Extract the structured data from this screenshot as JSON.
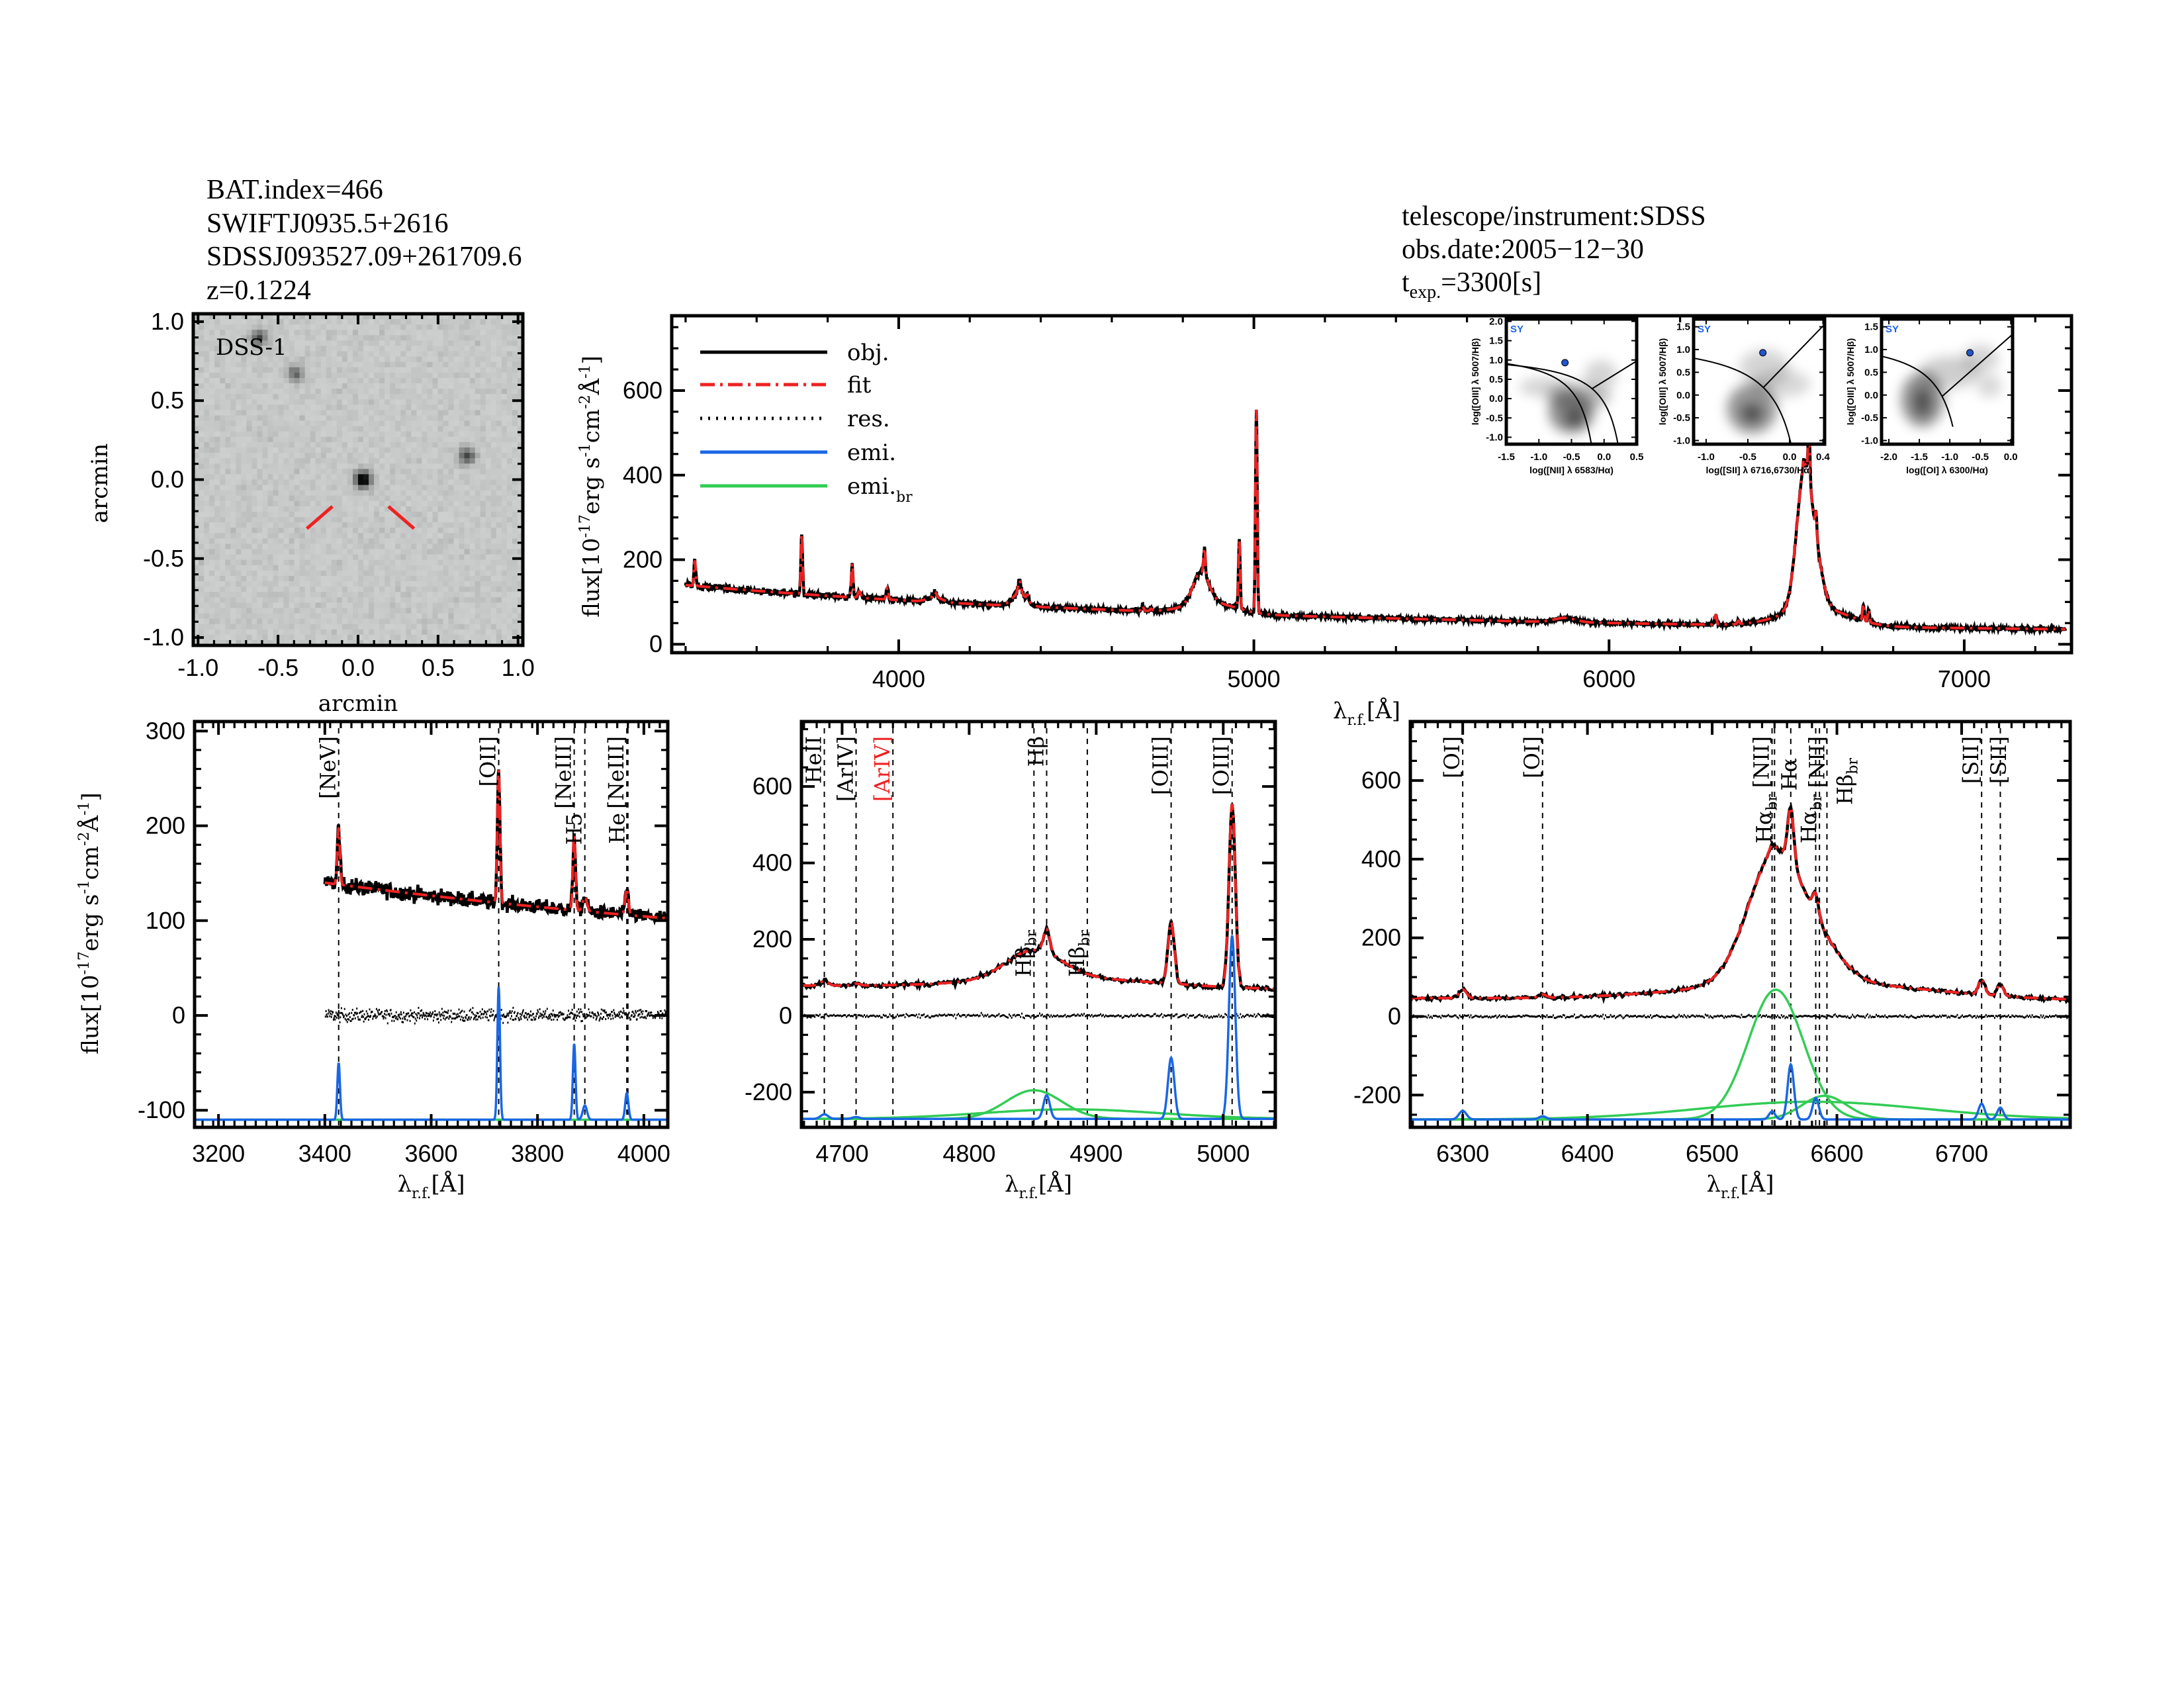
{
  "header_left": {
    "bat_index": "BAT.index=466",
    "swift_name": "SWIFTJ0935.5+2616",
    "sdss_name": "SDSSJ093527.09+261709.6",
    "redshift": "z=0.1224"
  },
  "header_right": {
    "instrument": "telescope/instrument:SDSS",
    "obs_date": "obs.date:2005−12−30",
    "texp_base": "t",
    "texp_sub": "exp.",
    "texp_value": "=3300[s]"
  },
  "colors": {
    "obj": "#000000",
    "fit": "#ee2222",
    "res": "#000000",
    "emi": "#1a66e6",
    "emi_br": "#33cc55",
    "bpt_point": "#2255cc",
    "sy_label": "#1a66e6"
  },
  "chart_data": {
    "dss": {
      "type": "heatmap",
      "label": "DSS-1",
      "xlabel": "arcmin",
      "ylabel": "arcmin",
      "xlim": [
        -1.03,
        1.03
      ],
      "ylim": [
        -1.05,
        1.05
      ],
      "xtick_labels": [
        "-1.0",
        "-0.5",
        "0.0",
        "0.5",
        "1.0"
      ],
      "ytick_labels": [
        "-1.0",
        "-0.5",
        "0.0",
        "0.5",
        "1.0"
      ],
      "sources": [
        {
          "x": 0.03,
          "y": 0.0,
          "amp": 1.0
        },
        {
          "x": -0.62,
          "y": 0.9,
          "amp": 0.55
        },
        {
          "x": -0.39,
          "y": 0.67,
          "amp": 0.45
        },
        {
          "x": 0.68,
          "y": 0.15,
          "amp": 0.6
        }
      ]
    },
    "main": {
      "type": "line",
      "xlim": [
        3361,
        7302
      ],
      "ylim": [
        -20,
        777
      ],
      "xtick_labels": [
        "4000",
        "5000",
        "6000",
        "7000"
      ],
      "ytick_labels": [
        "0",
        "200",
        "400",
        "600"
      ],
      "xlabel": {
        "base": "λ",
        "sub": "r.f.",
        "rest": "[Å]"
      },
      "ylabel": [
        {
          "t": "flux[10",
          "sup": false
        },
        {
          "t": "-17",
          "sup": true
        },
        {
          "t": "erg s",
          "sup": false
        },
        {
          "t": "-1",
          "sup": true
        },
        {
          "t": "cm",
          "sup": false
        },
        {
          "t": "-2",
          "sup": true
        },
        {
          "t": "Å",
          "sup": false
        },
        {
          "t": "-1",
          "sup": true
        },
        {
          "t": "]",
          "sup": false
        }
      ],
      "legend": [
        {
          "key": "obj",
          "text": "obj.",
          "sub": ""
        },
        {
          "key": "fit",
          "text": "fit",
          "sub": ""
        },
        {
          "key": "res",
          "text": "res.",
          "sub": ""
        },
        {
          "key": "emi",
          "text": "emi.",
          "sub": ""
        },
        {
          "key": "emi_br",
          "text": "emi.",
          "sub": "br"
        }
      ]
    },
    "zoom_panels": [
      {
        "id": "p1",
        "xlim": [
          3155,
          4045
        ],
        "ylim": [
          -118,
          310
        ],
        "xtick_labels": [
          "3200",
          "3400",
          "3600",
          "3800",
          "4000"
        ],
        "ytick_labels": [
          "-100",
          "0",
          "100",
          "200",
          "300"
        ],
        "emi_baseline": -110,
        "wave_range": [
          3400,
          4045
        ],
        "markers": [
          {
            "text": "[NeV]",
            "sub": "",
            "wave": 3426,
            "level": "upper",
            "color": "#000000"
          },
          {
            "text": "[OII]",
            "sub": "",
            "wave": 3727,
            "level": "upper",
            "color": "#000000"
          },
          {
            "text": "[NeIII]",
            "sub": "",
            "wave": 3869,
            "level": "upper",
            "color": "#000000"
          },
          {
            "text": "H5",
            "sub": "",
            "wave": 3889,
            "level": "middle",
            "color": "#000000"
          },
          {
            "text": "[NeIII]",
            "sub": "",
            "wave": 3968,
            "level": "upper",
            "color": "#000000"
          },
          {
            "text": "He",
            "sub": "",
            "wave": 3970,
            "level": "middle",
            "color": "#000000"
          }
        ]
      },
      {
        "id": "p2",
        "xlim": [
          4668,
          5041
        ],
        "ylim": [
          -292,
          770
        ],
        "xtick_labels": [
          "4700",
          "4800",
          "4900",
          "5000"
        ],
        "ytick_labels": [
          "-200",
          "0",
          "200",
          "400",
          "600"
        ],
        "emi_baseline": -270,
        "wave_range": [
          4668,
          5041
        ],
        "markers": [
          {
            "text": "HeII",
            "sub": "",
            "wave": 4686,
            "level": "upper",
            "color": "#000000"
          },
          {
            "text": "[ArIV]",
            "sub": "",
            "wave": 4711,
            "level": "upper",
            "color": "#000000"
          },
          {
            "text": "[ArIV]",
            "sub": "",
            "wave": 4740,
            "level": "upper",
            "color": "#ee2222"
          },
          {
            "text": "Hβ",
            "sub": "br",
            "wave": 4851,
            "level": "lower",
            "color": "#000000"
          },
          {
            "text": "Hβ",
            "sub": "",
            "wave": 4861,
            "level": "upper",
            "color": "#000000"
          },
          {
            "text": "Hβ",
            "sub": "br",
            "wave": 4893,
            "level": "lower",
            "color": "#000000"
          },
          {
            "text": "[OIII]",
            "sub": "",
            "wave": 4959,
            "level": "upper",
            "color": "#000000"
          },
          {
            "text": "[OIII]",
            "sub": "",
            "wave": 5007,
            "level": "upper",
            "color": "#000000"
          }
        ]
      },
      {
        "id": "p3",
        "xlim": [
          6258,
          6787
        ],
        "ylim": [
          -282,
          750
        ],
        "xtick_labels": [
          "6300",
          "6400",
          "6500",
          "6600",
          "6700"
        ],
        "ytick_labels": [
          "-200",
          "0",
          "200",
          "400",
          "600"
        ],
        "emi_baseline": -262,
        "wave_range": [
          6258,
          6787
        ],
        "markers": [
          {
            "text": "[OI]",
            "sub": "",
            "wave": 6300,
            "level": "upper",
            "color": "#000000"
          },
          {
            "text": "[OI]",
            "sub": "",
            "wave": 6364,
            "level": "upper",
            "color": "#000000"
          },
          {
            "text": "Hα",
            "sub": "br",
            "wave": 6550,
            "level": "mid2",
            "color": "#000000"
          },
          {
            "text": "[NII]",
            "sub": "",
            "wave": 6548,
            "level": "upper",
            "color": "#000000"
          },
          {
            "text": "Hα",
            "sub": "",
            "wave": 6563,
            "level": "upper2",
            "color": "#000000"
          },
          {
            "text": "Hα",
            "sub": "br",
            "wave": 6586,
            "level": "mid2",
            "color": "#000000"
          },
          {
            "text": "[NII]",
            "sub": "",
            "wave": 6583,
            "level": "upper",
            "color": "#000000"
          },
          {
            "text": "Hβ",
            "sub": "br",
            "wave": 6592,
            "level": "upper2",
            "color": "#000000"
          },
          {
            "text": "[SII]",
            "sub": "",
            "wave": 6716,
            "level": "upper",
            "color": "#000000"
          },
          {
            "text": "[SII]",
            "sub": "",
            "wave": 6731,
            "level": "upper",
            "color": "#000000"
          }
        ]
      }
    ],
    "bpt": [
      {
        "type": "scatter",
        "class_label": "SY",
        "xlabel": "log([NII] λ 6583/Hα)",
        "ylabel": "log([OIII] λ 5007/Hβ)",
        "xlim": [
          -1.5,
          0.5
        ],
        "ylim": [
          -1.18,
          2.06
        ],
        "xtick_labels": [
          "-1.5",
          "-1.0",
          "-0.5",
          "0.0",
          "0.5"
        ],
        "ytick_labels": [
          "-1.0",
          "-0.5",
          "0.0",
          "0.5",
          "1.0",
          "1.5",
          "2.0"
        ],
        "point": {
          "x": -0.6,
          "y": 0.93
        },
        "curves": [
          {
            "kind": "hyper",
            "a": 0.61,
            "b": 0.47,
            "c": 1.19,
            "xmax": 0.4
          },
          {
            "kind": "hyper",
            "a": 0.61,
            "b": 0.05,
            "c": 1.3,
            "xmax": -0.02
          },
          {
            "kind": "linear",
            "m": 1.05,
            "c": 0.45,
            "xmin": -0.18,
            "xmax": 0.5
          }
        ]
      },
      {
        "type": "scatter",
        "class_label": "SY",
        "xlabel": "log([SII] λ 6716,6730/Hα)",
        "ylabel": "log([OIII] λ 5007/Hβ)",
        "xlim": [
          -1.15,
          0.42
        ],
        "ylim": [
          -1.08,
          1.67
        ],
        "xtick_labels": [
          "-1.0",
          "-0.5",
          "0.0",
          "0.4"
        ],
        "ytick_labels": [
          "-1.0",
          "-0.5",
          "0.0",
          "0.5",
          "1.0",
          "1.5"
        ],
        "point": {
          "x": -0.32,
          "y": 0.93
        },
        "curves": [
          {
            "kind": "hyper",
            "a": 0.72,
            "b": 0.32,
            "c": 1.3,
            "xmax": 0.05
          },
          {
            "kind": "linear",
            "m": 1.89,
            "c": 0.76,
            "xmin": -0.31,
            "xmax": 0.42
          }
        ]
      },
      {
        "type": "scatter",
        "class_label": "SY",
        "xlabel": "log([OI] λ 6300/Hα)",
        "ylabel": "log([OIII] λ 5007/Hβ)",
        "xlim": [
          -2.12,
          0.03
        ],
        "ylim": [
          -1.08,
          1.67
        ],
        "xtick_labels": [
          "-2.0",
          "-1.5",
          "-1.0",
          "-0.5",
          "0.0"
        ],
        "ytick_labels": [
          "-1.0",
          "-0.5",
          "0.0",
          "0.5",
          "1.0",
          "1.5"
        ],
        "point": {
          "x": -0.67,
          "y": 0.93
        },
        "curves": [
          {
            "kind": "hyper",
            "a": 0.73,
            "b": -0.59,
            "c": 1.33,
            "xmax": -0.95
          },
          {
            "kind": "linear",
            "m": 1.18,
            "c": 1.3,
            "xmin": -1.12,
            "xmax": 0.03
          }
        ]
      }
    ],
    "spectrum_model": {
      "wave_range": [
        3400,
        7285
      ],
      "continuum": {
        "f0": 140,
        "lambda0": 3400,
        "index": -1.8
      },
      "noise_level": 4,
      "narrow_lines": [
        {
          "name": "[NeV]",
          "wave": 3426,
          "amp": 60,
          "sigma": 2.5
        },
        {
          "name": "[OII]",
          "wave": 3727,
          "amp": 140,
          "sigma": 2.5
        },
        {
          "name": "[NeIII]",
          "wave": 3869,
          "amp": 80,
          "sigma": 2.5
        },
        {
          "name": "H8",
          "wave": 3889,
          "amp": 15,
          "sigma": 4
        },
        {
          "name": "[NeIII]",
          "wave": 3968,
          "amp": 28,
          "sigma": 3
        },
        {
          "name": "Hdelta",
          "wave": 4102,
          "amp": 12,
          "sigma": 4
        },
        {
          "name": "Hgamma",
          "wave": 4340,
          "amp": 30,
          "sigma": 4
        },
        {
          "name": "[OIII]4363",
          "wave": 4363,
          "amp": 12,
          "sigma": 3
        },
        {
          "name": "HeII",
          "wave": 4686,
          "amp": 12,
          "sigma": 3
        },
        {
          "name": "[ArIV]",
          "wave": 4711,
          "amp": 5,
          "sigma": 3
        },
        {
          "name": "Hbeta",
          "wave": 4861,
          "amp": 62,
          "sigma": 2.5
        },
        {
          "name": "[OIII]4959",
          "wave": 4959,
          "amp": 160,
          "sigma": 2.5
        },
        {
          "name": "[OIII]5007",
          "wave": 5007,
          "amp": 480,
          "sigma": 2.5
        },
        {
          "name": "[OI]6300",
          "wave": 6300,
          "amp": 22,
          "sigma": 3
        },
        {
          "name": "[OI]6364",
          "wave": 6364,
          "amp": 8,
          "sigma": 3
        },
        {
          "name": "[NII]6548",
          "wave": 6548,
          "amp": 20,
          "sigma": 2.5
        },
        {
          "name": "Halpha",
          "wave": 6563,
          "amp": 140,
          "sigma": 2.5
        },
        {
          "name": "[NII]6583",
          "wave": 6583,
          "amp": 55,
          "sigma": 2.5
        },
        {
          "name": "[SII]6716",
          "wave": 6716,
          "amp": 40,
          "sigma": 2.5
        },
        {
          "name": "[SII]6731",
          "wave": 6731,
          "amp": 30,
          "sigma": 2.5
        }
      ],
      "broad_lines": [
        {
          "name": "Hdelta_br",
          "wave": 4102,
          "amp": 12,
          "sigma": 20
        },
        {
          "name": "Hgamma_br",
          "wave": 4340,
          "amp": 30,
          "sigma": 20
        },
        {
          "name": "Hbeta_br1",
          "wave": 4851,
          "amp": 75,
          "sigma": 22
        },
        {
          "name": "Hbeta_br2",
          "wave": 4880,
          "amp": 25,
          "sigma": 70
        },
        {
          "name": "HeI_br",
          "wave": 5876,
          "amp": 10,
          "sigma": 30
        },
        {
          "name": "Halpha_br1",
          "wave": 6551,
          "amp": 330,
          "sigma": 22
        },
        {
          "name": "Halpha_br2",
          "wave": 6590,
          "amp": 60,
          "sigma": 18
        },
        {
          "name": "Halpha_br3",
          "wave": 6580,
          "amp": 45,
          "sigma": 90
        }
      ]
    }
  }
}
